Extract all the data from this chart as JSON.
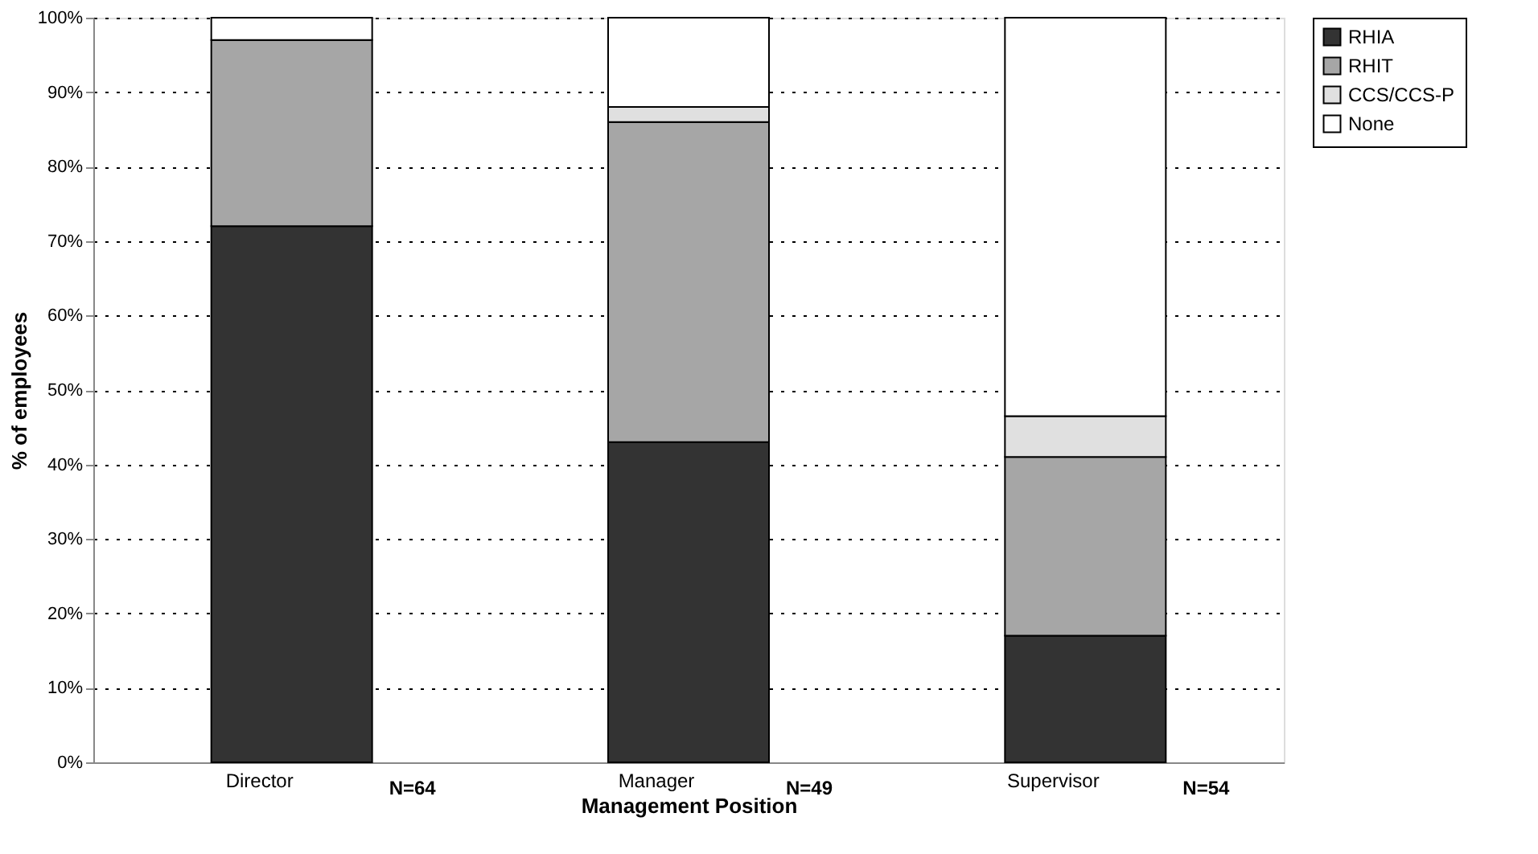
{
  "chart_data": {
    "type": "bar",
    "stacked": true,
    "xlabel": "Management Position",
    "ylabel": "% of employees",
    "categories": [
      "Director",
      "Manager",
      "Supervisor"
    ],
    "series": [
      {
        "name": "RHIA",
        "color": "#333333",
        "values": [
          72,
          43,
          17
        ]
      },
      {
        "name": "RHIT",
        "color": "#a6a6a6",
        "values": [
          25,
          43,
          24
        ]
      },
      {
        "name": "CCS/CCS-P",
        "color": "#e0e0e0",
        "values": [
          0,
          2,
          5.5
        ]
      },
      {
        "name": "None",
        "color": "#ffffff",
        "values": [
          3,
          12,
          53.5
        ]
      }
    ],
    "ylim": [
      0,
      100
    ],
    "yticks": [
      {
        "value": 0,
        "label": "0%"
      },
      {
        "value": 10,
        "label": "10%"
      },
      {
        "value": 20,
        "label": "20%"
      },
      {
        "value": 30,
        "label": "30%"
      },
      {
        "value": 40,
        "label": "40%"
      },
      {
        "value": 50,
        "label": "50%"
      },
      {
        "value": 60,
        "label": "60%"
      },
      {
        "value": 70,
        "label": "70%"
      },
      {
        "value": 80,
        "label": "80%"
      },
      {
        "value": 90,
        "label": "90%"
      },
      {
        "value": 100,
        "label": "100%"
      }
    ],
    "annotations": [
      "N=64",
      "N=49",
      "N=54"
    ],
    "grid": "y",
    "legend": "right"
  }
}
